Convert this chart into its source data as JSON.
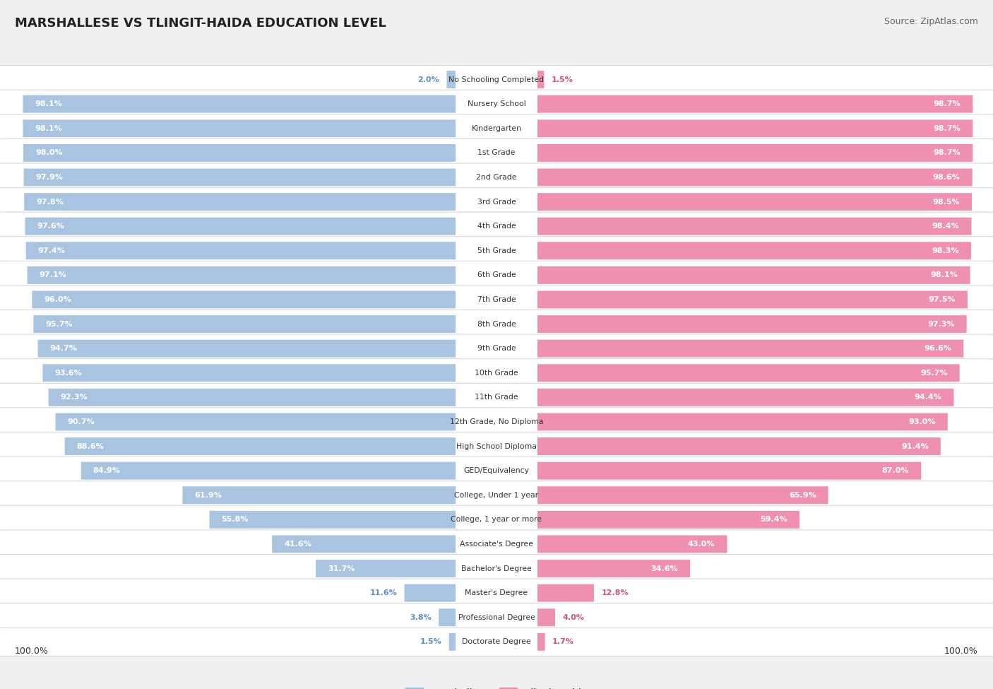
{
  "title": "MARSHALLESE VS TLINGIT-HAIDA EDUCATION LEVEL",
  "source": "Source: ZipAtlas.com",
  "categories": [
    "No Schooling Completed",
    "Nursery School",
    "Kindergarten",
    "1st Grade",
    "2nd Grade",
    "3rd Grade",
    "4th Grade",
    "5th Grade",
    "6th Grade",
    "7th Grade",
    "8th Grade",
    "9th Grade",
    "10th Grade",
    "11th Grade",
    "12th Grade, No Diploma",
    "High School Diploma",
    "GED/Equivalency",
    "College, Under 1 year",
    "College, 1 year or more",
    "Associate's Degree",
    "Bachelor's Degree",
    "Master's Degree",
    "Professional Degree",
    "Doctorate Degree"
  ],
  "marshallese": [
    2.0,
    98.1,
    98.1,
    98.0,
    97.9,
    97.8,
    97.6,
    97.4,
    97.1,
    96.0,
    95.7,
    94.7,
    93.6,
    92.3,
    90.7,
    88.6,
    84.9,
    61.9,
    55.8,
    41.6,
    31.7,
    11.6,
    3.8,
    1.5
  ],
  "tlingit": [
    1.5,
    98.7,
    98.7,
    98.7,
    98.6,
    98.5,
    98.4,
    98.3,
    98.1,
    97.5,
    97.3,
    96.6,
    95.7,
    94.4,
    93.0,
    91.4,
    87.0,
    65.9,
    59.4,
    43.0,
    34.6,
    12.8,
    4.0,
    1.7
  ],
  "bar_color_marshallese": "#a8c4e0",
  "bar_color_tlingit": "#f090b0",
  "bg_color": "#f0f0f0",
  "row_bg_color": "#ffffff",
  "row_border_color": "#d8d8d8",
  "text_color": "#333333",
  "label_color_inside": "#ffffff",
  "label_color_outside_m": "#6090c0",
  "label_color_outside_t": "#d05080",
  "bottom_label": "100.0%",
  "legend_marshallese": "Marshallese",
  "legend_tlingit": "Tlingit-Haida"
}
